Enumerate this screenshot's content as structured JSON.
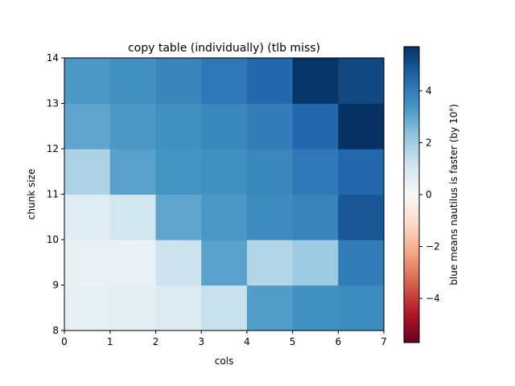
{
  "chart_data": {
    "type": "heatmap",
    "title": "copy table (individually) (tlb miss)",
    "xlabel": "cols",
    "ylabel": "chunk size",
    "xlim": [
      0,
      7
    ],
    "ylim": [
      8,
      14
    ],
    "x_ticks": [
      "0",
      "1",
      "2",
      "3",
      "4",
      "5",
      "6",
      "7"
    ],
    "y_ticks": [
      "8",
      "9",
      "10",
      "11",
      "12",
      "13",
      "14"
    ],
    "colormap": "RdBu",
    "colorbar": {
      "label": "blue means nautilus is faster (by 10^x)",
      "label_prefix": "blue means nautilus is faster (by 10",
      "label_sup": "x",
      "label_suffix": ")",
      "vmin": -5.7,
      "vmax": 5.7,
      "ticks": [
        "4",
        "2",
        "0",
        "−2",
        "−4"
      ],
      "tick_values": [
        4,
        2,
        0,
        -2,
        -4
      ]
    },
    "rows_bottom_to_top": [
      8,
      9,
      10,
      11,
      12,
      13
    ],
    "values": [
      [
        0.5,
        0.6,
        0.8,
        1.3,
        3.2,
        3.5,
        3.6
      ],
      [
        0.4,
        0.4,
        1.2,
        3.1,
        1.7,
        2.1,
        4.0
      ],
      [
        0.7,
        1.1,
        3.0,
        3.3,
        3.6,
        3.8,
        4.9
      ],
      [
        1.8,
        3.1,
        3.4,
        3.5,
        3.7,
        4.1,
        4.5
      ],
      [
        3.0,
        3.3,
        3.5,
        3.7,
        4.0,
        4.5,
        5.7
      ],
      [
        3.3,
        3.5,
        3.8,
        4.1,
        4.5,
        5.6,
        5.2
      ]
    ]
  }
}
